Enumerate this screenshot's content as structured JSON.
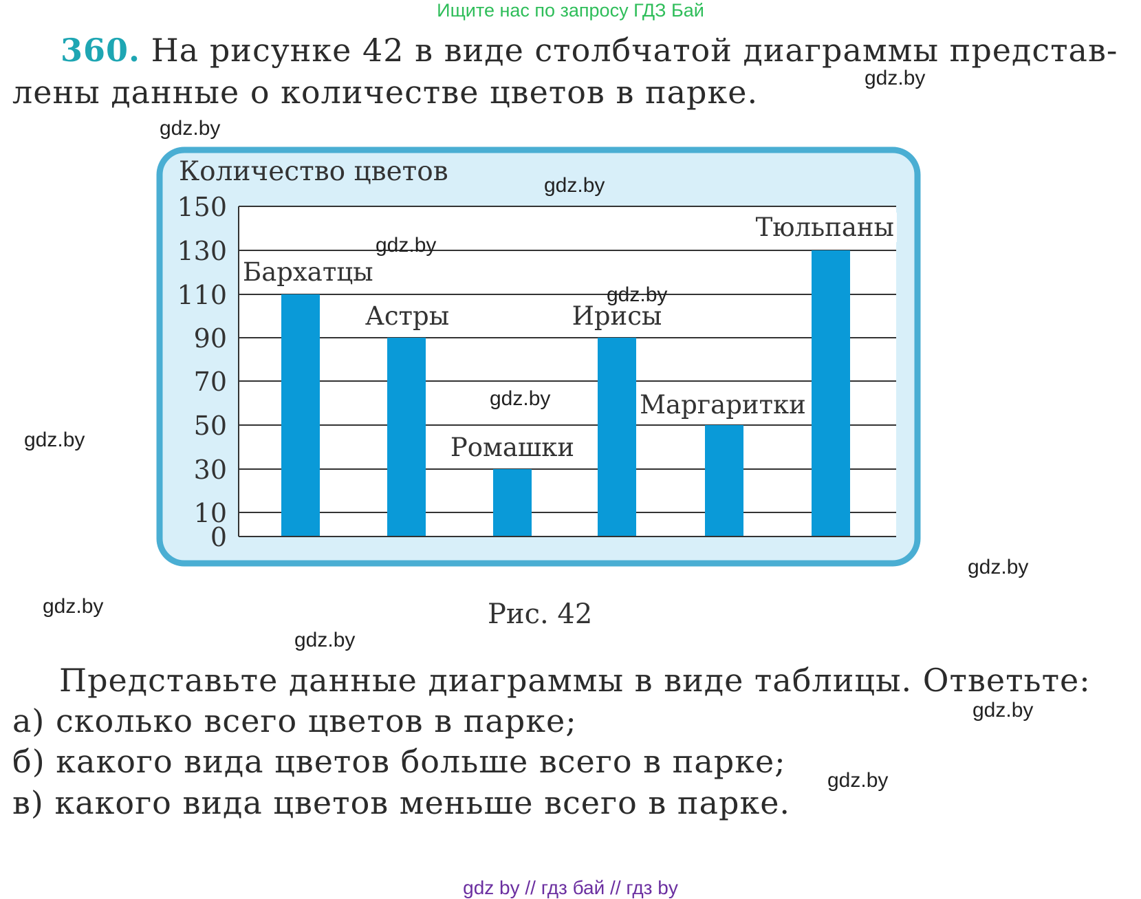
{
  "banner": "Ищите нас по запросу ГДЗ Бай",
  "task": {
    "number": "360.",
    "line1": "На рисунке 42 в виде столбчатой диаграммы представ-",
    "line2": "лены данные о количестве цветов в парке."
  },
  "chart_data": {
    "type": "bar",
    "title": "Количество цветов",
    "categories": [
      "Бархатцы",
      "Астры",
      "Ромашки",
      "Ирисы",
      "Маргаритки",
      "Тюльпаны"
    ],
    "values": [
      110,
      90,
      30,
      90,
      50,
      130
    ],
    "yticks": [
      "150",
      "130",
      "110",
      "90",
      "70",
      "50",
      "30",
      "10",
      "0"
    ],
    "ytick_values": [
      150,
      130,
      110,
      90,
      70,
      50,
      30,
      10,
      0
    ],
    "ylim": [
      0,
      150
    ],
    "bar_color": "#0a9ad8",
    "panel_color": "#d8eff9",
    "panel_border_color": "#4aaed3",
    "grid": true
  },
  "caption": "Рис. 42",
  "questions": {
    "intro": "Представьте данные диаграммы в виде таблицы. Ответьте:",
    "a": "а) сколько всего цветов в парке;",
    "b": "б) какого вида цветов больше всего в парке;",
    "c": "в) какого вида цветов меньше всего в парке."
  },
  "watermark": "gdz.by",
  "footer": "gdz by  //  гдз бай  //  гдз by"
}
